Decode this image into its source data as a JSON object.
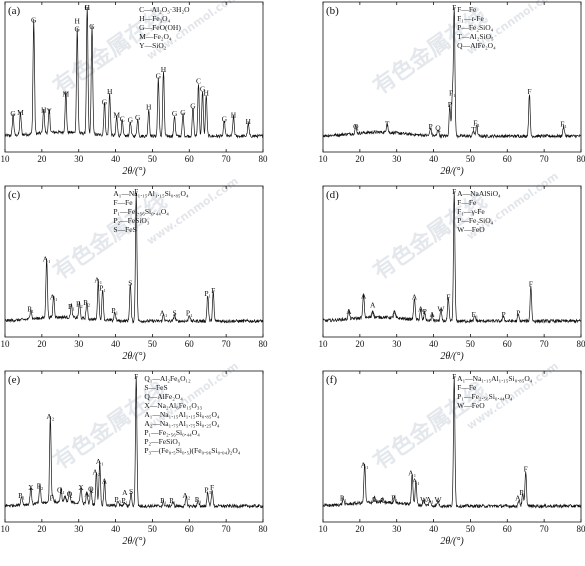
{
  "watermark": {
    "text": "有色金属在线",
    "url": "www.cnnmol.com"
  },
  "chart_data": [
    {
      "type": "line",
      "panel": "(a)",
      "xlabel": "2θ/(°)",
      "xlim": [
        10,
        80
      ],
      "xticks": [
        10,
        20,
        30,
        40,
        50,
        60,
        70,
        80
      ],
      "legend": [
        "C—Al₂O₃·3H₂O",
        "H—Fe₃O₄",
        "G—FeO(OH)",
        "M—Fe₂O₄",
        "Y—SiO₂"
      ],
      "peaks": [
        {
          "x": 12.2,
          "h": 0.16,
          "labels": [
            "G"
          ]
        },
        {
          "x": 14.2,
          "h": 0.17,
          "labels": [
            "M"
          ]
        },
        {
          "x": 17.8,
          "h": 0.88,
          "labels": [
            "G"
          ]
        },
        {
          "x": 20.5,
          "h": 0.19,
          "labels": [
            "H"
          ]
        },
        {
          "x": 22.0,
          "h": 0.18,
          "labels": [
            "Y"
          ]
        },
        {
          "x": 26.5,
          "h": 0.31,
          "labels": [
            "M"
          ]
        },
        {
          "x": 29.6,
          "h": 0.81,
          "labels": [
            "H",
            "G"
          ]
        },
        {
          "x": 32.3,
          "h": 0.99,
          "labels": [
            "G",
            "H"
          ]
        },
        {
          "x": 33.6,
          "h": 0.83,
          "labels": [
            "G"
          ]
        },
        {
          "x": 37.0,
          "h": 0.25,
          "labels": [
            "G"
          ]
        },
        {
          "x": 38.4,
          "h": 0.33,
          "labels": [
            "H"
          ]
        },
        {
          "x": 40.3,
          "h": 0.15,
          "labels": [
            "M"
          ]
        },
        {
          "x": 41.8,
          "h": 0.12,
          "labels": [
            "C"
          ]
        },
        {
          "x": 44.0,
          "h": 0.11,
          "labels": [
            "G"
          ]
        },
        {
          "x": 46.0,
          "h": 0.13,
          "labels": [
            "G"
          ]
        },
        {
          "x": 49.0,
          "h": 0.21,
          "labels": [
            "H"
          ]
        },
        {
          "x": 51.6,
          "h": 0.45,
          "labels": [
            "G"
          ]
        },
        {
          "x": 53.0,
          "h": 0.5,
          "labels": [
            "H"
          ]
        },
        {
          "x": 56.0,
          "h": 0.16,
          "labels": [
            "G"
          ]
        },
        {
          "x": 58.3,
          "h": 0.17,
          "labels": [
            "G"
          ]
        },
        {
          "x": 61.0,
          "h": 0.22,
          "labels": [
            "G"
          ]
        },
        {
          "x": 62.5,
          "h": 0.41,
          "labels": [
            "C"
          ]
        },
        {
          "x": 63.6,
          "h": 0.35,
          "labels": [
            "G"
          ]
        },
        {
          "x": 64.6,
          "h": 0.32,
          "labels": [
            "H"
          ]
        },
        {
          "x": 69.5,
          "h": 0.12,
          "labels": [
            "G"
          ]
        },
        {
          "x": 72.0,
          "h": 0.15,
          "labels": [
            "H"
          ]
        },
        {
          "x": 76.0,
          "h": 0.1,
          "labels": [
            "H"
          ]
        }
      ]
    },
    {
      "type": "line",
      "panel": "(b)",
      "xlabel": "2θ/(°)",
      "xlim": [
        10,
        80
      ],
      "xticks": [
        10,
        20,
        30,
        40,
        50,
        60,
        70,
        80
      ],
      "legend": [
        "F—Fe",
        "F₁—r-Fe",
        "P—Fe₂SiO₄",
        "T—Al₂SiO₅",
        "Q—AlFe₂O₄"
      ],
      "peaks": [
        {
          "x": 18.9,
          "h": 0.06,
          "labels": [
            "Q"
          ]
        },
        {
          "x": 27.4,
          "h": 0.08,
          "labels": [
            "T"
          ]
        },
        {
          "x": 39.2,
          "h": 0.06,
          "labels": [
            "P"
          ]
        },
        {
          "x": 41.2,
          "h": 0.05,
          "labels": [
            "Q"
          ]
        },
        {
          "x": 44.4,
          "h": 0.23,
          "labels": [
            "P"
          ]
        },
        {
          "x": 45.1,
          "h": 0.32,
          "labels": [
            "F₁"
          ]
        },
        {
          "x": 45.6,
          "h": 0.99,
          "labels": [
            "F"
          ]
        },
        {
          "x": 50.8,
          "h": 0.04,
          "labels": [
            "T"
          ]
        },
        {
          "x": 51.7,
          "h": 0.09,
          "labels": [
            "F₁"
          ]
        },
        {
          "x": 66.0,
          "h": 0.33,
          "labels": [
            "F"
          ]
        },
        {
          "x": 75.3,
          "h": 0.08,
          "labels": [
            "F₁"
          ]
        }
      ]
    },
    {
      "type": "line",
      "panel": "(c)",
      "xlabel": "2θ/(°)",
      "xlim": [
        10,
        80
      ],
      "xticks": [
        10,
        20,
        30,
        40,
        50,
        60,
        70,
        80
      ],
      "legend": [
        "A₁—Na₁.₁₅Al₁.₁₅Si₀.₈₅O₄",
        "F—Fe",
        "P₁—Fe₂.₅₆Si₀.₄₄O₄",
        "P₂—FeSiO₃",
        "S—FeS"
      ],
      "peaks": [
        {
          "x": 17.0,
          "h": 0.08,
          "labels": [
            "P₁"
          ]
        },
        {
          "x": 21.3,
          "h": 0.46,
          "labels": [
            "A₁"
          ]
        },
        {
          "x": 23.2,
          "h": 0.17,
          "labels": [
            "A₁"
          ]
        },
        {
          "x": 28.0,
          "h": 0.1,
          "labels": [
            "P₁"
          ]
        },
        {
          "x": 30.2,
          "h": 0.12,
          "labels": [
            "P₂"
          ]
        },
        {
          "x": 32.2,
          "h": 0.13,
          "labels": [
            "P₂"
          ]
        },
        {
          "x": 35.3,
          "h": 0.3,
          "labels": [
            "A₁"
          ]
        },
        {
          "x": 36.5,
          "h": 0.24,
          "labels": [
            "P₁"
          ]
        },
        {
          "x": 39.8,
          "h": 0.07,
          "labels": [
            "P₁"
          ]
        },
        {
          "x": 44.0,
          "h": 0.28,
          "labels": [
            "S"
          ]
        },
        {
          "x": 45.6,
          "h": 0.99,
          "labels": [
            "F"
          ]
        },
        {
          "x": 53.0,
          "h": 0.05,
          "labels": [
            "A₁"
          ]
        },
        {
          "x": 56.0,
          "h": 0.05,
          "labels": [
            "S"
          ]
        },
        {
          "x": 60.0,
          "h": 0.05,
          "labels": [
            "P₁"
          ]
        },
        {
          "x": 65.0,
          "h": 0.2,
          "labels": [
            "P₁"
          ]
        },
        {
          "x": 66.5,
          "h": 0.22,
          "labels": [
            "F"
          ]
        }
      ]
    },
    {
      "type": "line",
      "panel": "(d)",
      "xlabel": "2θ/(°)",
      "xlim": [
        10,
        80
      ],
      "xticks": [
        10,
        20,
        30,
        40,
        50,
        60,
        70,
        80
      ],
      "legend": [
        "A—NaAlSiO₄",
        "F—Fe",
        "F₁—γ-Fe",
        "P—Fe₂SiO₄",
        "W—FeO"
      ],
      "peaks": [
        {
          "x": 17.0,
          "h": 0.06,
          "labels": [
            "A"
          ]
        },
        {
          "x": 21.0,
          "h": 0.18,
          "labels": [
            "A"
          ]
        },
        {
          "x": 23.5,
          "h": 0.05,
          "labels": [
            "A",
            "A"
          ]
        },
        {
          "x": 29.4,
          "h": 0.05,
          "labels": [
            "A"
          ]
        },
        {
          "x": 34.8,
          "h": 0.17,
          "labels": [
            "A"
          ]
        },
        {
          "x": 36.5,
          "h": 0.08,
          "labels": [
            "A"
          ]
        },
        {
          "x": 37.6,
          "h": 0.06,
          "labels": [
            "P"
          ]
        },
        {
          "x": 39.6,
          "h": 0.04,
          "labels": [
            "A"
          ]
        },
        {
          "x": 42.0,
          "h": 0.08,
          "labels": [
            "W"
          ]
        },
        {
          "x": 44.0,
          "h": 0.17,
          "labels": [
            "F"
          ]
        },
        {
          "x": 45.6,
          "h": 0.99,
          "labels": [
            "F"
          ]
        },
        {
          "x": 51.2,
          "h": 0.04,
          "labels": [
            "F₁"
          ]
        },
        {
          "x": 59.0,
          "h": 0.04,
          "labels": [
            "P"
          ]
        },
        {
          "x": 63.0,
          "h": 0.05,
          "labels": [
            "P"
          ]
        },
        {
          "x": 66.4,
          "h": 0.27,
          "labels": [
            "F"
          ]
        }
      ]
    },
    {
      "type": "line",
      "panel": "(e)",
      "xlabel": "2θ/(°)",
      "xlim": [
        10,
        80
      ],
      "xticks": [
        10,
        20,
        30,
        40,
        50,
        60,
        70,
        80
      ],
      "legend": [
        "Q₁—Al₂Fe₆O₁₂",
        "S—FeS",
        "Q—AlFe₂O₄",
        "X—Na₂Al₆Fe₁₅O₃₃",
        "A₁—Na₁.₁₅Al₁.₁₅Si₀.₈₅O₄",
        "A₂—Na₁.₇₅Al₁.₇₅Si₀.₂₅O₄",
        "P₁—Fe₂.₅₆Si₀.₄₄O₄",
        "P₂—FeSiO₃",
        "P₃—(Fe₀.₅Si₀.₅)(Fe₀.₉₆Si₀.₀₄)₂O₄"
      ],
      "peaks": [
        {
          "x": 14.5,
          "h": 0.07,
          "labels": [
            "P₁"
          ]
        },
        {
          "x": 17.0,
          "h": 0.13,
          "labels": [
            "X"
          ]
        },
        {
          "x": 19.5,
          "h": 0.14,
          "labels": [
            "P₂"
          ]
        },
        {
          "x": 23.0,
          "h": 0.05,
          "labels": [
            "P₃"
          ]
        },
        {
          "x": 25.2,
          "h": 0.11,
          "labels": [
            "Q₁"
          ]
        },
        {
          "x": 26.3,
          "h": 0.05,
          "labels": [
            "A"
          ]
        },
        {
          "x": 27.5,
          "h": 0.08,
          "labels": [
            "Q"
          ]
        },
        {
          "x": 30.6,
          "h": 0.13,
          "labels": [
            "X"
          ]
        },
        {
          "x": 32.2,
          "h": 0.08,
          "labels": [
            "A"
          ]
        },
        {
          "x": 33.3,
          "h": 0.12,
          "labels": [
            "Q"
          ]
        },
        {
          "x": 34.8,
          "h": 0.25,
          "labels": [
            "A₂"
          ]
        },
        {
          "x": 35.7,
          "h": 0.33,
          "labels": [
            "A₁"
          ]
        },
        {
          "x": 37.0,
          "h": 0.18,
          "labels": [
            "A"
          ]
        },
        {
          "x": 22.3,
          "h": 0.67,
          "labels": [
            "A₂"
          ]
        },
        {
          "x": 40.6,
          "h": 0.04,
          "labels": [
            "P₃"
          ]
        },
        {
          "x": 42.5,
          "h": 0.03,
          "labels": [
            "A",
            "P₁"
          ]
        },
        {
          "x": 44.2,
          "h": 0.1,
          "labels": [
            "S"
          ]
        },
        {
          "x": 45.6,
          "h": 0.99,
          "labels": [
            "F"
          ]
        },
        {
          "x": 53.0,
          "h": 0.03,
          "labels": [
            "P₁"
          ]
        },
        {
          "x": 55.5,
          "h": 0.03,
          "labels": [
            "P₁"
          ]
        },
        {
          "x": 59.2,
          "h": 0.07,
          "labels": [
            "A₂"
          ]
        },
        {
          "x": 62.4,
          "h": 0.04,
          "labels": [
            "P₁"
          ]
        },
        {
          "x": 65.0,
          "h": 0.11,
          "labels": [
            "P₃"
          ]
        },
        {
          "x": 66.2,
          "h": 0.13,
          "labels": [
            "F"
          ]
        }
      ]
    },
    {
      "type": "line",
      "panel": "(f)",
      "xlabel": "2θ/(°)",
      "xlim": [
        10,
        80
      ],
      "xticks": [
        10,
        20,
        30,
        40,
        50,
        60,
        70,
        80
      ],
      "legend": [
        "A₁—Na₁.₁₅Al₁.₁₅Si₀.₈₅O₄",
        "F—Fe",
        "P₁—Fe₂.₅₆Si₀.₄₄O₄",
        "W—FeO"
      ],
      "peaks": [
        {
          "x": 15.5,
          "h": 0.05,
          "labels": [
            "P₁"
          ]
        },
        {
          "x": 21.3,
          "h": 0.3,
          "labels": [
            "A₁"
          ]
        },
        {
          "x": 24.0,
          "h": 0.04,
          "labels": [
            "A₁"
          ]
        },
        {
          "x": 26.2,
          "h": 0.03,
          "labels": [
            "A₁"
          ]
        },
        {
          "x": 29.4,
          "h": 0.05,
          "labels": [
            "P₁"
          ]
        },
        {
          "x": 34.2,
          "h": 0.24,
          "labels": [
            "A₁"
          ]
        },
        {
          "x": 35.2,
          "h": 0.18,
          "labels": [
            "A₁"
          ]
        },
        {
          "x": 37.3,
          "h": 0.04,
          "labels": [
            "W"
          ]
        },
        {
          "x": 39.0,
          "h": 0.04,
          "labels": [
            "A₁"
          ]
        },
        {
          "x": 41.2,
          "h": 0.04,
          "labels": [
            "W"
          ]
        },
        {
          "x": 45.6,
          "h": 0.99,
          "labels": [
            "F"
          ]
        },
        {
          "x": 63.2,
          "h": 0.05,
          "labels": [
            "A₁"
          ]
        },
        {
          "x": 64.2,
          "h": 0.09,
          "labels": [
            "P₁"
          ]
        },
        {
          "x": 65.0,
          "h": 0.27,
          "labels": [
            "F"
          ]
        }
      ]
    }
  ]
}
